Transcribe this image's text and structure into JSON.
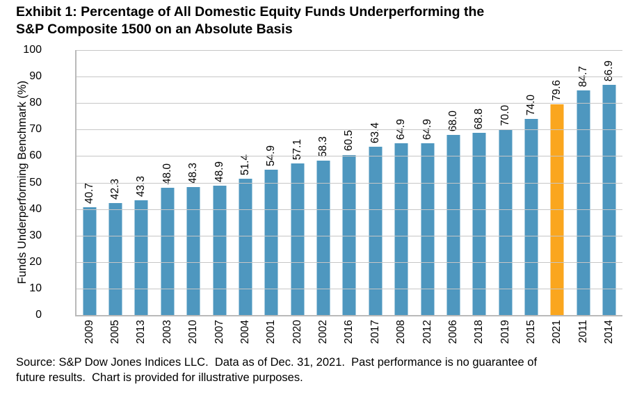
{
  "title_lines": [
    "Exhibit 1: Percentage of All Domestic Equity Funds Underperforming the",
    "S&P Composite 1500 on an Absolute Basis"
  ],
  "chart_data": {
    "type": "bar",
    "title": "Exhibit 1: Percentage of All Domestic Equity Funds Underperforming the S&P Composite 1500 on an Absolute Basis",
    "xlabel": "",
    "ylabel": "Funds Underperforming Benchmark (%)",
    "ylim": [
      0,
      100
    ],
    "yticks": [
      0,
      10,
      20,
      30,
      40,
      50,
      60,
      70,
      80,
      90,
      100
    ],
    "grid": "horizontal",
    "legend": "none",
    "categories": [
      "2009",
      "2005",
      "2013",
      "2003",
      "2010",
      "2007",
      "2004",
      "2001",
      "2020",
      "2002",
      "2016",
      "2017",
      "2008",
      "2012",
      "2006",
      "2018",
      "2019",
      "2015",
      "2021",
      "2011",
      "2014"
    ],
    "values": [
      40.7,
      42.3,
      43.3,
      48.0,
      48.3,
      48.9,
      51.4,
      54.9,
      57.1,
      58.3,
      60.5,
      63.4,
      64.9,
      64.9,
      68.0,
      68.8,
      70.0,
      74.0,
      79.6,
      84.7,
      86.9
    ],
    "bar_color": "#4E97BF",
    "highlight_color": "#FAA61E",
    "highlight_category": "2021",
    "gridline_color": "#C6C6C6",
    "axis_line_color": "#B9B9B9",
    "value_label_decimals": 1
  },
  "source_lines": [
    "Source: S&P Dow Jones Indices LLC.  Data as of Dec. 31, 2021.  Past performance is no guarantee of",
    "future results.  Chart is provided for illustrative purposes."
  ]
}
